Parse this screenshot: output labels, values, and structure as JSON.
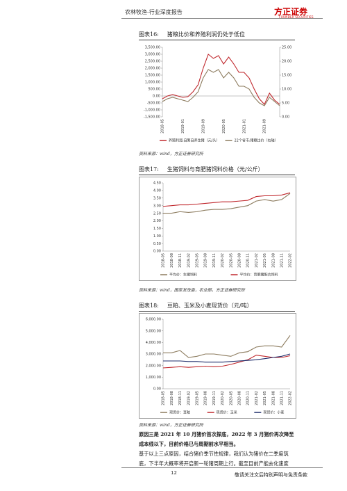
{
  "header": {
    "title": "农林牧渔-行业深度报告",
    "logo": "方正证券",
    "logo_sub": "FOUNDER SECURITIES"
  },
  "figures": [
    {
      "label": "图表16:",
      "source": "资料来源：wind，方正证券研究所"
    },
    {
      "label": "图表17:",
      "source": "资料来源：wind，国家发改委，农业部，方正证券研究所"
    },
    {
      "label": "图表18:",
      "source": "资料来源：wind，方正证券研究所"
    }
  ],
  "chart_data": [
    {
      "type": "line",
      "title": "猪粮比价和养殖利润仍处于低位",
      "categories": [
        "2018-05",
        null,
        null,
        null,
        "2019-01",
        null,
        null,
        null,
        "2019-09",
        null,
        null,
        null,
        "2020-05",
        null,
        null,
        null,
        "2021-01",
        null,
        null,
        null,
        "2021-09",
        null,
        null,
        null
      ],
      "series": [
        {
          "name": "养殖利润:自繁自养生猪（元/头）",
          "color": "#c0282d",
          "values": [
            -200,
            0,
            100,
            0,
            -100,
            -50,
            300,
            800,
            2000,
            3000,
            2700,
            2900,
            2300,
            2800,
            2300,
            1700,
            1700,
            1300,
            500,
            -200,
            -600,
            200,
            -300,
            -600
          ]
        },
        {
          "name": "22个省市:猪粮比价（右轴）",
          "color": "#8c7b5e",
          "axis": "y2",
          "values": [
            5.5,
            6.5,
            7,
            6.5,
            6,
            5.5,
            7,
            9,
            14,
            17,
            16,
            17,
            14,
            16,
            14,
            11,
            11,
            10,
            7,
            5,
            4,
            7,
            5.5,
            4
          ]
        }
      ],
      "ylim": [
        -1500,
        3500
      ],
      "yticks": [
        {
          "value": -1500,
          "label": "-1,500.00"
        },
        {
          "value": -1000,
          "label": "-1,000.00"
        },
        {
          "value": -500,
          "label": "-500.00"
        },
        {
          "value": 0,
          "label": "0.00"
        },
        {
          "value": 500,
          "label": "500.00"
        },
        {
          "value": 1000,
          "label": "1,000.00"
        },
        {
          "value": 1500,
          "label": "1,500.00"
        },
        {
          "value": 2000,
          "label": "2,000.00"
        },
        {
          "value": 2500,
          "label": "2,500.00"
        },
        {
          "value": 3000,
          "label": "3,000.00"
        },
        {
          "value": 3500,
          "label": "3,500.00"
        }
      ],
      "y2lim": [
        0,
        25
      ],
      "y2ticks": [
        {
          "value": 0,
          "label": "0.00"
        },
        {
          "value": 5,
          "label": "5.00"
        },
        {
          "value": 10,
          "label": "10.00"
        },
        {
          "value": 15,
          "label": "15.00"
        },
        {
          "value": 20,
          "label": "20.00"
        },
        {
          "value": 25,
          "label": "25.00"
        }
      ]
    },
    {
      "type": "line",
      "title": "生猪饲料与育肥猪饲料价格（元/公斤）",
      "categories": [
        "2018-05",
        "2018-08",
        "2018-11",
        "2019-02",
        "2019-05",
        "2019-08",
        "2019-11",
        "2020-02",
        "2020-05",
        "2020-08",
        "2020-11",
        "2021-02",
        "2021-05",
        "2021-08",
        "2021-11",
        "2022-02"
      ],
      "series": [
        {
          "name": "平均价：生猪饲料",
          "color": "#8c7b5e",
          "values": [
            2.5,
            2.5,
            2.6,
            2.55,
            2.6,
            2.7,
            2.75,
            2.75,
            2.8,
            2.9,
            3.0,
            3.3,
            3.4,
            3.3,
            3.4,
            3.8
          ]
        },
        {
          "name": "平均价：育肥猪配合饲料",
          "color": "#c0282d",
          "values": [
            2.95,
            3.0,
            3.05,
            3.05,
            3.1,
            3.15,
            3.2,
            3.25,
            3.25,
            3.3,
            3.35,
            3.6,
            3.65,
            3.65,
            3.7,
            3.85
          ]
        }
      ],
      "ylim": [
        0,
        4.5
      ],
      "yticks": [
        {
          "value": 0,
          "label": "0.00"
        },
        {
          "value": 0.5,
          "label": "0.50"
        },
        {
          "value": 1,
          "label": "1.00"
        },
        {
          "value": 1.5,
          "label": "1.50"
        },
        {
          "value": 2,
          "label": "2.00"
        },
        {
          "value": 2.5,
          "label": "2.50"
        },
        {
          "value": 3,
          "label": "3.00"
        },
        {
          "value": 3.5,
          "label": "3.50"
        },
        {
          "value": 4,
          "label": "4.00"
        },
        {
          "value": 4.5,
          "label": "4.50"
        }
      ]
    },
    {
      "type": "line",
      "title": "豆粕、玉米及小麦现货价（元/吨）",
      "categories": [
        "2018-05",
        "2018-08",
        "2018-11",
        "2019-02",
        "2019-05",
        "2019-08",
        "2019-11",
        "2020-02",
        "2020-05",
        "2020-08",
        "2020-11",
        "2021-02",
        "2021-05",
        "2021-08",
        "2021-11",
        "2022-02"
      ],
      "series": [
        {
          "name": "现货价：豆粕",
          "color": "#8c7b5e",
          "values": [
            3100,
            3100,
            3300,
            2700,
            2800,
            3000,
            3000,
            2900,
            2800,
            3100,
            3200,
            3600,
            3700,
            3700,
            3600,
            4600
          ]
        },
        {
          "name": "现货价：玉米",
          "color": "#c0282d",
          "values": [
            1800,
            1850,
            1900,
            1850,
            1900,
            1950,
            1900,
            1950,
            2100,
            2300,
            2500,
            2900,
            2800,
            2700,
            2700,
            2850
          ]
        },
        {
          "name": "现货价：小麦",
          "color": "#1f2d6b",
          "values": [
            2400,
            2400,
            2400,
            2350,
            2350,
            2300,
            2300,
            2300,
            2350,
            2400,
            2450,
            2500,
            2600,
            2700,
            2800,
            3000
          ]
        }
      ],
      "ylim": [
        0,
        6000
      ],
      "yticks": [
        {
          "value": 0,
          "label": "0.00"
        },
        {
          "value": 1000,
          "label": "1,000.00"
        },
        {
          "value": 2000,
          "label": "2,000.00"
        },
        {
          "value": 3000,
          "label": "3,000.00"
        },
        {
          "value": 4000,
          "label": "4,000.00"
        },
        {
          "value": 5000,
          "label": "5,000.00"
        },
        {
          "value": 6000,
          "label": "6,000.00"
        }
      ]
    }
  ],
  "paragraphs": [
    "原因三是 2021 年 10 月猪价首次探底，2022 年 3 月猪价再次降至成本线以下，目前价格已与周期前水平相当。",
    "基于以上三点原因，结合猪价季节性规律，我们认为猪价在二季度筑底，下半年大概率将开启新一轮猪周期上行。截至目前产能去化速度"
  ],
  "footer": {
    "page": "12",
    "disclaimer": "敬请关注文后特别声明与免责条款"
  }
}
